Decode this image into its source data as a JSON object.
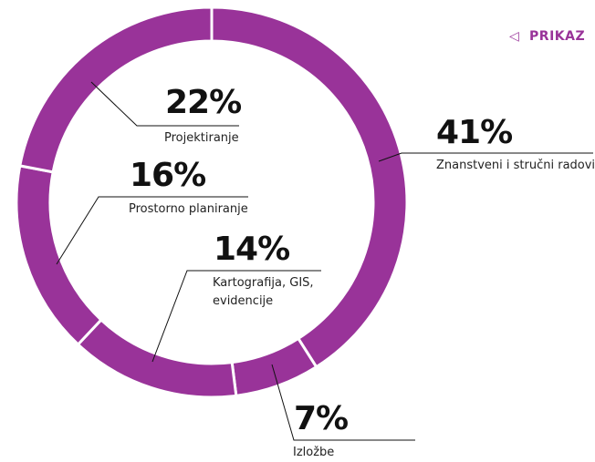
{
  "chart_data": {
    "type": "donut",
    "button": "PRIKAZ",
    "categories": [
      "Znanstveni i stručni radovi",
      "Izložbe",
      "Kartografija, GIS, evidencije",
      "Prostorno planiranje",
      "Projektiranje"
    ],
    "values": [
      41,
      7,
      14,
      16,
      22
    ],
    "value_labels": [
      "41%",
      "7%",
      "14%",
      "16%",
      "22%"
    ],
    "color": "#993399"
  }
}
